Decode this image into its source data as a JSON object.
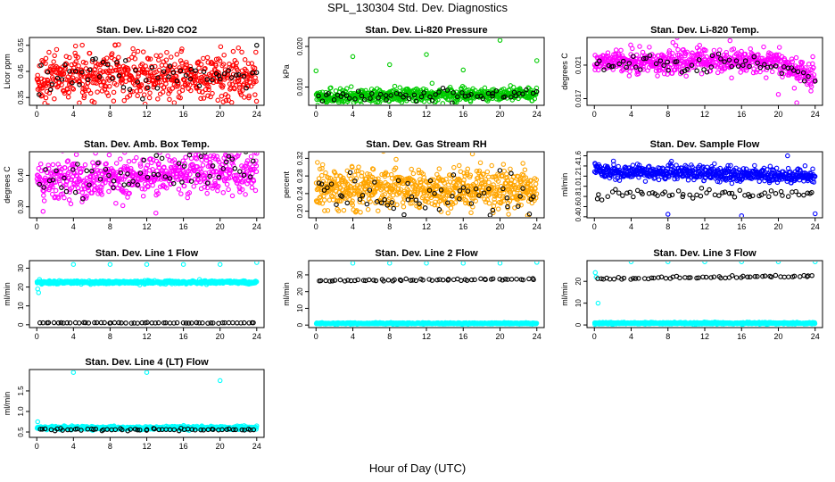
{
  "figure": {
    "title": "SPL_130304  Std. Dev. Diagnostics",
    "xlabel": "Hour of Day (UTC)"
  },
  "colors": {
    "red": "#ff0000",
    "green": "#00cc00",
    "magenta": "#ff00ff",
    "orange": "#ffa500",
    "blue": "#0000ff",
    "cyan": "#00ffff",
    "black": "#000000"
  },
  "chart_data": [
    {
      "type": "scatter",
      "title": "Stan. Dev. Li-820 CO2",
      "ylabel": "Licor ppm",
      "xticks": [
        0,
        4,
        8,
        12,
        16,
        20,
        24
      ],
      "yticks": [
        "0.35",
        "0.45",
        "0.55"
      ],
      "ylim": [
        0.32,
        0.58
      ],
      "xlim": [
        -0.8,
        24.8
      ],
      "series": [
        {
          "color": "red",
          "n": 600,
          "mean": 0.43,
          "sd": 0.045,
          "outliers": [
            [
              1,
              0.5
            ],
            [
              5,
              0.37
            ],
            [
              15,
              0.33
            ],
            [
              22,
              0.54
            ]
          ]
        },
        {
          "color": "black",
          "n": 60,
          "mean": 0.43,
          "sd": 0.04,
          "outliers": [
            [
              24,
              0.55
            ]
          ]
        }
      ],
      "blue_points": [
        [
          4,
          0.58
        ],
        [
          6,
          0.52
        ],
        [
          13,
          0.46
        ],
        [
          16,
          0.36
        ],
        [
          24,
          0.55
        ]
      ]
    },
    {
      "type": "scatter",
      "title": "Stan. Dev. Li-820 Pressure",
      "ylabel": "kPa",
      "xticks": [
        0,
        4,
        8,
        12,
        16,
        20,
        24
      ],
      "yticks": [
        "0.010",
        "0.020"
      ],
      "ylim": [
        0.0055,
        0.0222
      ],
      "xlim": [
        -0.8,
        24.8
      ],
      "series": [
        {
          "color": "green",
          "n": 600,
          "mean": 0.0076,
          "sd": 0.0008,
          "trend": 3e-05,
          "outliers": [
            [
              0,
              0.014
            ],
            [
              4,
              0.0175
            ],
            [
              8,
              0.0155
            ],
            [
              12,
              0.018
            ],
            [
              16,
              0.0142
            ],
            [
              20,
              0.0215
            ],
            [
              24,
              0.0165
            ]
          ]
        },
        {
          "color": "black",
          "n": 60,
          "mean": 0.0077,
          "sd": 0.0007,
          "trend": 3e-05
        }
      ]
    },
    {
      "type": "scatter",
      "title": "Stan. Dev. Li-820 Temp.",
      "ylabel": "degrees C",
      "xticks": [
        0,
        4,
        8,
        12,
        16,
        20,
        24
      ],
      "yticks": [
        "0.017",
        "0.021"
      ],
      "ylim": [
        0.0162,
        0.0243
      ],
      "xlim": [
        -0.8,
        24.8
      ],
      "series": [
        {
          "color": "magenta",
          "n": 600,
          "mean": 0.0215,
          "sd": 0.0007,
          "drop": true,
          "outliers": [
            [
              9,
              0.0243
            ],
            [
              20,
              0.0175
            ],
            [
              22,
              0.0165
            ]
          ]
        },
        {
          "color": "black",
          "n": 60,
          "mean": 0.0212,
          "sd": 0.0006,
          "drop": true
        }
      ]
    },
    {
      "type": "scatter",
      "title": "Stan. Dev. Amb. Box Temp.",
      "ylabel": "degrees C",
      "xticks": [
        0,
        4,
        8,
        12,
        16,
        20,
        24
      ],
      "yticks": [
        "0.30",
        "0.40"
      ],
      "ylim": [
        0.265,
        0.475
      ],
      "xlim": [
        -0.8,
        24.8
      ],
      "series": [
        {
          "color": "magenta",
          "n": 600,
          "mean": 0.38,
          "sd": 0.035,
          "trend": 0.0015,
          "outliers": [
            [
              13,
              0.28
            ],
            [
              24,
              0.47
            ]
          ]
        },
        {
          "color": "black",
          "n": 60,
          "mean": 0.385,
          "sd": 0.03,
          "trend": 0.0015
        }
      ]
    },
    {
      "type": "scatter",
      "title": "Stan. Dev. Gas Stream RH",
      "ylabel": "percent",
      "xticks": [
        0,
        4,
        8,
        12,
        16,
        20,
        24
      ],
      "yticks": [
        "0.20",
        "0.24",
        "0.28",
        "0.32"
      ],
      "ylim": [
        0.185,
        0.335
      ],
      "xlim": [
        -0.8,
        24.8
      ],
      "series": [
        {
          "color": "orange",
          "n": 700,
          "mean": 0.25,
          "sd": 0.022,
          "outliers": [
            [
              17,
              0.33
            ],
            [
              23,
              0.19
            ]
          ]
        },
        {
          "color": "black",
          "n": 60,
          "mean": 0.24,
          "sd": 0.02
        }
      ]
    },
    {
      "type": "scatter",
      "title": "Stan. Dev. Sample Flow",
      "ylabel": "ml/min",
      "xticks": [
        0,
        4,
        8,
        12,
        16,
        20,
        24
      ],
      "yticks": [
        "0.4",
        "0.6",
        "0.8",
        "1.0",
        "1.2",
        "1.4",
        "1.6"
      ],
      "ylim": [
        0.38,
        1.68
      ],
      "xlim": [
        -0.8,
        24.8
      ],
      "series": [
        {
          "color": "blue",
          "n": 600,
          "mean": 1.3,
          "sd": 0.07,
          "trend": -0.004,
          "outliers": [
            [
              8,
              0.45
            ],
            [
              16,
              0.42
            ],
            [
              21,
              1.6
            ],
            [
              24,
              0.46
            ]
          ]
        },
        {
          "color": "black",
          "n": 60,
          "mean": 0.85,
          "sd": 0.05
        }
      ]
    },
    {
      "type": "scatter",
      "title": "Stan. Dev. Line 1 Flow",
      "ylabel": "ml/min",
      "xticks": [
        0,
        4,
        8,
        12,
        16,
        20,
        24
      ],
      "yticks": [
        "0",
        "10",
        "20",
        "30"
      ],
      "ylim": [
        -1.5,
        34
      ],
      "xlim": [
        -0.8,
        24.8
      ],
      "series": [
        {
          "color": "cyan",
          "n": 600,
          "mean": 22.5,
          "sd": 0.4,
          "outliers": [
            [
              0.1,
              19
            ],
            [
              0.2,
              17
            ],
            [
              0.3,
              24
            ],
            [
              4,
              32
            ],
            [
              8,
              32
            ],
            [
              12,
              32
            ],
            [
              16,
              32
            ],
            [
              20,
              32
            ],
            [
              24,
              33
            ]
          ]
        },
        {
          "color": "black",
          "n": 60,
          "mean": 1.0,
          "sd": 0.1
        }
      ]
    },
    {
      "type": "scatter",
      "title": "Stan. Dev. Line 2 Flow",
      "ylabel": "ml/min",
      "xticks": [
        0,
        4,
        8,
        12,
        16,
        20,
        24
      ],
      "yticks": [
        "0",
        "10",
        "20",
        "30"
      ],
      "ylim": [
        -1.5,
        38.5
      ],
      "xlim": [
        -0.8,
        24.8
      ],
      "series": [
        {
          "color": "cyan",
          "n": 600,
          "mean": 1.0,
          "sd": 0.2,
          "outliers": [
            [
              4,
              37
            ],
            [
              8,
              37
            ],
            [
              12,
              37
            ],
            [
              16,
              37
            ],
            [
              20,
              37
            ],
            [
              24,
              37.5
            ]
          ]
        },
        {
          "color": "black",
          "n": 60,
          "mean": 26.5,
          "sd": 0.3,
          "trend": 0.04
        }
      ]
    },
    {
      "type": "scatter",
      "title": "Stan. Dev. Line 3 Flow",
      "ylabel": "ml/min",
      "xticks": [
        0,
        4,
        8,
        12,
        16,
        20,
        24
      ],
      "yticks": [
        "0",
        "10",
        "20"
      ],
      "ylim": [
        -1.2,
        29.5
      ],
      "xlim": [
        -0.8,
        24.8
      ],
      "series": [
        {
          "color": "cyan",
          "n": 600,
          "mean": 0.8,
          "sd": 0.2,
          "outliers": [
            [
              0.1,
              24
            ],
            [
              0.2,
              22
            ],
            [
              0.4,
              10
            ],
            [
              4,
              29
            ],
            [
              8,
              29
            ],
            [
              12,
              29
            ],
            [
              16,
              29
            ],
            [
              20,
              29
            ],
            [
              24,
              29
            ]
          ]
        },
        {
          "color": "black",
          "n": 60,
          "mean": 21.2,
          "sd": 0.3,
          "trend": 0.05
        }
      ]
    },
    {
      "type": "scatter",
      "title": "Stan. Dev. Line 4 (LT) Flow",
      "ylabel": "ml/min",
      "xticks": [
        0,
        4,
        8,
        12,
        16,
        20,
        24
      ],
      "yticks": [
        "0.5",
        "1.0",
        "1.5"
      ],
      "ylim": [
        0.37,
        2.02
      ],
      "xlim": [
        -0.8,
        24.8
      ],
      "series": [
        {
          "color": "cyan",
          "n": 600,
          "mean": 0.6,
          "sd": 0.02,
          "outliers": [
            [
              0.1,
              0.75
            ],
            [
              4,
              1.95
            ],
            [
              12,
              1.95
            ],
            [
              20,
              1.75
            ],
            [
              24,
              0.65
            ]
          ]
        },
        {
          "color": "black",
          "n": 60,
          "mean": 0.56,
          "sd": 0.015
        }
      ]
    }
  ]
}
